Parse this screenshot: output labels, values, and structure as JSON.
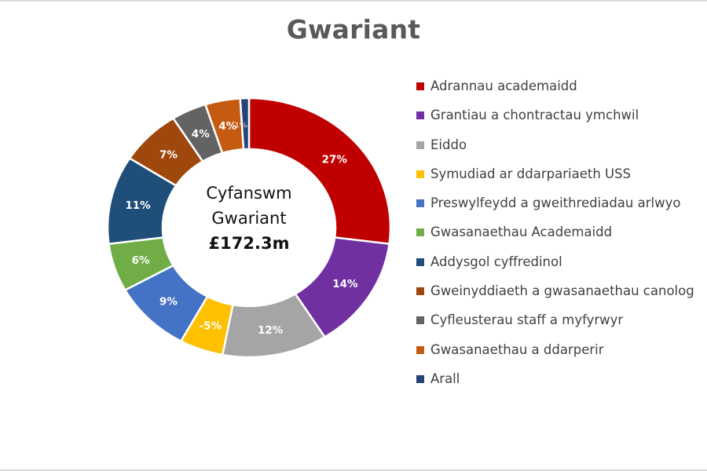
{
  "chart_data": {
    "type": "pie",
    "subtype": "donut",
    "title": "Gwariant",
    "center_label": {
      "line1": "Cyfanswm",
      "line2": "Gwariant",
      "total": "£172.3m"
    },
    "categories": [
      "Adrannau academaidd",
      "Grantiau a chontractau ymchwil",
      "Eiddo",
      "Symudiad ar ddarpariaeth USS",
      "Preswylfeydd a gweithrediadau arlwyo",
      "Gwasanaethau Academaidd",
      "Addysgol cyffredinol",
      "Gweinyddiaeth a gwasanaethau canolog",
      "Cyfleusterau staff a myfyrwyr",
      "Gwasanaethau a ddarperir",
      "Arall"
    ],
    "legend_display_labels": [
      "Adrannau academaidd",
      "Grantiau a chontractau ymchwil",
      "Eiddo",
      "Symudiad ar ddarpariaeth USS",
      "Preswylfeydd a gweithrediadau arlwyo",
      "Gwasanaethau Academaidd",
      "Addysgol cyffredinol",
      "Gweinyddiaeth a gwasanaethau canolog",
      "Cyfleusterau staff a myfyrwyr",
      "Gwasanaethau a ddarperir",
      "Arall"
    ],
    "values": [
      27,
      14,
      12,
      -5,
      9,
      6,
      11,
      7,
      4,
      4,
      1
    ],
    "value_labels": [
      "27%",
      "14%",
      "12%",
      "-5%",
      "9%",
      "6%",
      "11%",
      "7%",
      "4%",
      "4%",
      "1%"
    ],
    "unit": "%",
    "colors": [
      "#C00000",
      "#7030A0",
      "#A5A5A5",
      "#FFC000",
      "#4472C4",
      "#70AD47",
      "#1F4E79",
      "#9E480E",
      "#636363",
      "#C55A11",
      "#264478"
    ],
    "legend_position": "right",
    "start_angle_deg": 0,
    "direction": "clockwise"
  }
}
